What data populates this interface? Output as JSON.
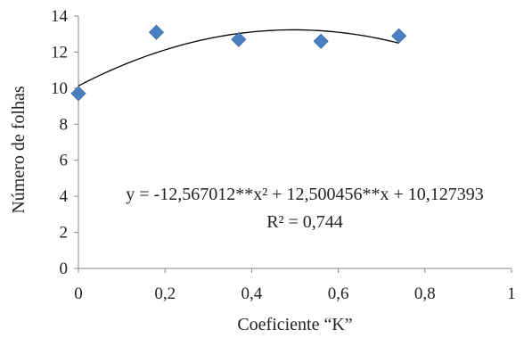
{
  "chart_data": {
    "type": "scatter",
    "title": "",
    "xlabel": "Coeficiente “K”",
    "ylabel": "Número de folhas",
    "xlim": [
      0,
      1
    ],
    "ylim": [
      0,
      14
    ],
    "x_ticks": [
      "0",
      "0,2",
      "0,4",
      "0,6",
      "0,8",
      "1"
    ],
    "y_ticks": [
      "0",
      "2",
      "4",
      "6",
      "8",
      "10",
      "12",
      "14"
    ],
    "grid": false,
    "legend": "none",
    "series": [
      {
        "marker": "diamond",
        "color": "#4a7fc1",
        "points": [
          {
            "x": 0.0,
            "y": 9.7
          },
          {
            "x": 0.18,
            "y": 13.1
          },
          {
            "x": 0.37,
            "y": 12.7
          },
          {
            "x": 0.56,
            "y": 12.6
          },
          {
            "x": 0.74,
            "y": 12.9
          }
        ]
      }
    ],
    "trendline": {
      "type": "polynomial",
      "coefficients": [
        -12.567012,
        12.500456,
        10.127393
      ],
      "x_range": [
        0,
        0.74
      ],
      "color": "#000000",
      "equation_text": "y = -12,567012**x² + 12,500456**x + 10,127393",
      "r2_text": "R² = 0,744"
    }
  }
}
